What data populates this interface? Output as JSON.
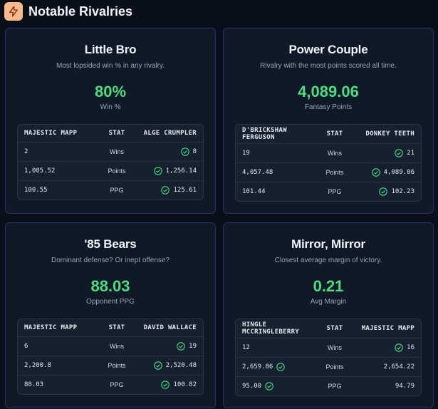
{
  "header": {
    "title": "Notable Rivalries"
  },
  "cards": [
    {
      "title": "Little Bro",
      "description": "Most lopsided win % in any rivalry.",
      "value": "80%",
      "unit": "Win %",
      "table": {
        "left_header": "MAJESTIC MAPP",
        "mid_header": "STAT",
        "right_header": "ALGE CRUMPLER",
        "rows": [
          {
            "left": "2",
            "stat": "Wins",
            "right": "8",
            "winner": "right"
          },
          {
            "left": "1,005.52",
            "stat": "Points",
            "right": "1,256.14",
            "winner": "right"
          },
          {
            "left": "100.55",
            "stat": "PPG",
            "right": "125.61",
            "winner": "right"
          }
        ]
      }
    },
    {
      "title": "Power Couple",
      "description": "Rivalry with the most points scored all time.",
      "value": "4,089.06",
      "unit": "Fantasy Points",
      "table": {
        "left_header": "D'BRICKSHAW FERGUSON",
        "mid_header": "STAT",
        "right_header": "DONKEY TEETH",
        "rows": [
          {
            "left": "19",
            "stat": "Wins",
            "right": "21",
            "winner": "right"
          },
          {
            "left": "4,057.48",
            "stat": "Points",
            "right": "4,089.06",
            "winner": "right"
          },
          {
            "left": "101.44",
            "stat": "PPG",
            "right": "102.23",
            "winner": "right"
          }
        ]
      }
    },
    {
      "title": "'85 Bears",
      "description": "Dominant defense? Or inept offense?",
      "value": "88.03",
      "unit": "Opponent PPG",
      "table": {
        "left_header": "MAJESTIC MAPP",
        "mid_header": "STAT",
        "right_header": "DAVID WALLACE",
        "rows": [
          {
            "left": "6",
            "stat": "Wins",
            "right": "19",
            "winner": "right"
          },
          {
            "left": "2,200.8",
            "stat": "Points",
            "right": "2,520.48",
            "winner": "right"
          },
          {
            "left": "88.03",
            "stat": "PPG",
            "right": "100.82",
            "winner": "right"
          }
        ]
      }
    },
    {
      "title": "Mirror, Mirror",
      "description": "Closest average margin of victory.",
      "value": "0.21",
      "unit": "Avg Margin",
      "table": {
        "left_header": "HINGLE MCCRINGLEBERRY",
        "mid_header": "STAT",
        "right_header": "MAJESTIC MAPP",
        "rows": [
          {
            "left": "12",
            "stat": "Wins",
            "right": "16",
            "winner": "right"
          },
          {
            "left": "2,659.86",
            "stat": "Points",
            "right": "2,654.22",
            "winner": "left"
          },
          {
            "left": "95.00",
            "stat": "PPG",
            "right": "94.79",
            "winner": "left"
          }
        ]
      }
    }
  ],
  "colors": {
    "accent": "#4ade80",
    "logo_bg": "#f9b98a",
    "card_border": "#2a2f6b"
  }
}
